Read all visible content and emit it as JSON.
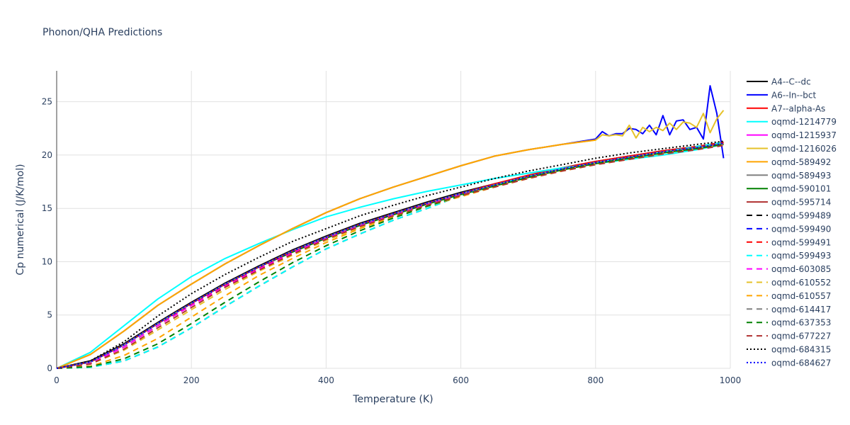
{
  "chart_data": {
    "type": "line",
    "title": "Phonon/QHA Predictions",
    "xlabel": "Temperature (K)",
    "ylabel": "Cp numerical (J/K/mol)",
    "xlim": [
      0,
      1000
    ],
    "ylim": [
      0,
      27.9
    ],
    "xticks": [
      0,
      200,
      400,
      600,
      800,
      1000
    ],
    "yticks": [
      0,
      5,
      10,
      15,
      20,
      25
    ],
    "grid": true,
    "legend_position": "right",
    "x": [
      0,
      50,
      100,
      150,
      200,
      250,
      300,
      350,
      400,
      450,
      500,
      550,
      600,
      650,
      700,
      750,
      800,
      850,
      900,
      950,
      990
    ],
    "series": [
      {
        "name": "A4--C--dc",
        "color": "#000000",
        "dash": "solid",
        "y": [
          0,
          0.7,
          2.3,
          4.3,
          6.2,
          8.0,
          9.6,
          11.1,
          12.4,
          13.6,
          14.6,
          15.6,
          16.5,
          17.3,
          18.1,
          18.8,
          19.4,
          19.9,
          20.4,
          20.8,
          21.2
        ]
      },
      {
        "name": "A6--In--bct",
        "color": "#0000ff",
        "dash": "solid",
        "x": [
          0,
          50,
          100,
          150,
          200,
          250,
          300,
          350,
          400,
          450,
          500,
          550,
          600,
          650,
          700,
          750,
          800,
          810,
          820,
          830,
          840,
          850,
          860,
          870,
          880,
          890,
          900,
          910,
          920,
          930,
          940,
          950,
          960,
          970,
          980,
          990
        ],
        "y": [
          0,
          1.3,
          3.5,
          5.9,
          7.9,
          9.8,
          11.5,
          13.1,
          14.6,
          15.9,
          17.0,
          18.0,
          19.0,
          19.9,
          20.5,
          21.0,
          21.5,
          22.2,
          21.8,
          22.0,
          22.0,
          22.5,
          22.4,
          22.0,
          22.8,
          21.9,
          23.7,
          21.9,
          23.2,
          23.3,
          22.4,
          22.6,
          21.5,
          26.5,
          23.9,
          19.7
        ]
      },
      {
        "name": "A7--alpha-As",
        "color": "#ff0000",
        "dash": "solid",
        "y": [
          0,
          0.6,
          2.2,
          4.2,
          6.1,
          7.9,
          9.5,
          11.0,
          12.3,
          13.5,
          14.5,
          15.5,
          16.4,
          17.3,
          18.1,
          18.8,
          19.4,
          19.9,
          20.4,
          20.8,
          21.2
        ]
      },
      {
        "name": "oqmd-1214779",
        "color": "#00ffff",
        "dash": "solid",
        "y": [
          0,
          1.5,
          4.0,
          6.5,
          8.6,
          10.3,
          11.7,
          13.0,
          14.2,
          15.1,
          15.9,
          16.6,
          17.2,
          17.8,
          18.3,
          18.8,
          19.2,
          19.6,
          20.0,
          20.5,
          21.0
        ]
      },
      {
        "name": "oqmd-1215937",
        "color": "#ff00ff",
        "dash": "solid",
        "y": [
          0,
          0.6,
          2.2,
          4.2,
          6.1,
          7.9,
          9.5,
          11.0,
          12.3,
          13.5,
          14.5,
          15.5,
          16.4,
          17.2,
          18.0,
          18.7,
          19.3,
          19.8,
          20.3,
          20.7,
          21.1
        ]
      },
      {
        "name": "oqmd-1216026",
        "color": "#e6c229",
        "dash": "solid",
        "x": [
          0,
          50,
          100,
          150,
          200,
          250,
          300,
          350,
          400,
          450,
          500,
          550,
          600,
          650,
          700,
          750,
          800,
          810,
          820,
          830,
          840,
          850,
          860,
          870,
          880,
          890,
          900,
          910,
          920,
          930,
          940,
          950,
          960,
          970,
          980,
          990
        ],
        "y": [
          0,
          1.3,
          3.5,
          5.9,
          7.9,
          9.8,
          11.5,
          13.1,
          14.6,
          15.9,
          17.0,
          18.0,
          19.0,
          19.9,
          20.5,
          21.0,
          21.4,
          21.9,
          21.8,
          21.9,
          21.8,
          22.8,
          21.6,
          22.6,
          22.2,
          22.6,
          22.3,
          23.0,
          22.4,
          23.1,
          23.0,
          22.6,
          23.9,
          22.1,
          23.4,
          24.2
        ]
      },
      {
        "name": "oqmd-589492",
        "color": "#ffa500",
        "dash": "solid",
        "x": [
          0,
          50,
          100,
          150,
          200,
          250,
          300,
          350,
          400,
          450,
          500,
          550,
          600,
          650,
          700,
          750,
          800
        ],
        "y": [
          0,
          1.3,
          3.5,
          5.9,
          7.9,
          9.8,
          11.5,
          13.1,
          14.6,
          15.9,
          17.0,
          18.0,
          19.0,
          19.9,
          20.5,
          21.0,
          21.4
        ]
      },
      {
        "name": "oqmd-589493",
        "color": "#808080",
        "dash": "solid",
        "y": [
          0,
          0.6,
          2.2,
          4.2,
          6.1,
          7.9,
          9.5,
          11.0,
          12.3,
          13.5,
          14.5,
          15.5,
          16.4,
          17.2,
          18.0,
          18.7,
          19.3,
          19.8,
          20.3,
          20.7,
          21.1
        ]
      },
      {
        "name": "oqmd-590101",
        "color": "#008000",
        "dash": "solid",
        "y": [
          0,
          0.6,
          2.2,
          4.2,
          6.1,
          7.9,
          9.5,
          10.9,
          12.2,
          13.4,
          14.4,
          15.4,
          16.3,
          17.1,
          17.9,
          18.6,
          19.2,
          19.7,
          20.2,
          20.6,
          21.0
        ]
      },
      {
        "name": "oqmd-595714",
        "color": "#b03030",
        "dash": "solid",
        "y": [
          0,
          0.6,
          2.2,
          4.2,
          6.1,
          7.9,
          9.5,
          11.0,
          12.3,
          13.5,
          14.5,
          15.5,
          16.4,
          17.2,
          18.0,
          18.7,
          19.3,
          19.8,
          20.3,
          20.7,
          21.1
        ]
      },
      {
        "name": "oqmd-599489",
        "color": "#000000",
        "dash": "dash",
        "y": [
          0,
          0.1,
          0.7,
          2.0,
          3.8,
          5.8,
          7.7,
          9.5,
          11.2,
          12.6,
          13.9,
          15.0,
          16.2,
          17.2,
          18.0,
          18.7,
          19.3,
          19.8,
          20.3,
          20.8,
          21.2
        ]
      },
      {
        "name": "oqmd-599490",
        "color": "#0000ff",
        "dash": "dash",
        "y": [
          0,
          0.6,
          2.2,
          4.2,
          6.1,
          7.9,
          9.5,
          11.0,
          12.3,
          13.5,
          14.5,
          15.5,
          16.4,
          17.2,
          18.0,
          18.7,
          19.3,
          19.8,
          20.3,
          20.7,
          21.1
        ]
      },
      {
        "name": "oqmd-599491",
        "color": "#ff0000",
        "dash": "dash",
        "y": [
          0,
          0.5,
          2.0,
          4.0,
          6.0,
          7.8,
          9.4,
          10.9,
          12.3,
          13.5,
          14.5,
          15.5,
          16.4,
          17.2,
          18.0,
          18.7,
          19.3,
          19.8,
          20.3,
          20.7,
          21.1
        ]
      },
      {
        "name": "oqmd-599493",
        "color": "#00ffff",
        "dash": "dash",
        "y": [
          0,
          0.1,
          0.7,
          2.0,
          3.8,
          5.8,
          7.7,
          9.5,
          11.2,
          12.6,
          13.9,
          15.0,
          16.2,
          17.2,
          18.0,
          18.7,
          19.3,
          19.8,
          20.3,
          20.8,
          21.2
        ]
      },
      {
        "name": "oqmd-603085",
        "color": "#ff00ff",
        "dash": "dash",
        "y": [
          0,
          0.5,
          2.0,
          4.0,
          5.9,
          7.7,
          9.3,
          10.8,
          12.2,
          13.4,
          14.4,
          15.4,
          16.3,
          17.1,
          17.9,
          18.6,
          19.2,
          19.7,
          20.2,
          20.6,
          21.0
        ]
      },
      {
        "name": "oqmd-610552",
        "color": "#e6c229",
        "dash": "dash",
        "y": [
          0,
          0.4,
          1.7,
          3.6,
          5.5,
          7.4,
          9.1,
          10.6,
          12.0,
          13.2,
          14.3,
          15.3,
          16.2,
          17.1,
          17.9,
          18.6,
          19.2,
          19.7,
          20.2,
          20.6,
          21.0
        ]
      },
      {
        "name": "oqmd-610557",
        "color": "#ffa500",
        "dash": "dash",
        "y": [
          0,
          0.2,
          1.2,
          2.8,
          4.8,
          6.8,
          8.7,
          10.3,
          11.8,
          13.1,
          14.2,
          15.2,
          16.1,
          17.0,
          17.8,
          18.5,
          19.1,
          19.6,
          20.1,
          20.6,
          21.0
        ]
      },
      {
        "name": "oqmd-614417",
        "color": "#808080",
        "dash": "dash",
        "y": [
          0,
          0.6,
          2.2,
          4.2,
          6.1,
          7.9,
          9.5,
          11.0,
          12.3,
          13.5,
          14.5,
          15.5,
          16.4,
          17.2,
          18.0,
          18.7,
          19.3,
          19.8,
          20.3,
          20.7,
          21.1
        ]
      },
      {
        "name": "oqmd-637353",
        "color": "#008000",
        "dash": "dash",
        "y": [
          0,
          0.15,
          0.9,
          2.3,
          4.2,
          6.2,
          8.1,
          9.9,
          11.5,
          12.9,
          14.1,
          15.2,
          16.2,
          17.1,
          17.9,
          18.6,
          19.2,
          19.7,
          20.2,
          20.6,
          21.0
        ]
      },
      {
        "name": "oqmd-677227",
        "color": "#b03030",
        "dash": "dash",
        "y": [
          0,
          0.4,
          1.8,
          3.8,
          5.7,
          7.6,
          9.2,
          10.7,
          12.1,
          13.3,
          14.3,
          15.3,
          16.2,
          17.0,
          17.8,
          18.5,
          19.1,
          19.6,
          20.1,
          20.5,
          20.9
        ]
      },
      {
        "name": "oqmd-684315",
        "color": "#000000",
        "dash": "dot",
        "y": [
          0,
          0.7,
          2.5,
          4.9,
          7.0,
          8.8,
          10.4,
          11.9,
          13.1,
          14.3,
          15.3,
          16.2,
          17.0,
          17.8,
          18.5,
          19.1,
          19.7,
          20.2,
          20.6,
          21.0,
          21.3
        ]
      },
      {
        "name": "oqmd-684627",
        "color": "#0000ff",
        "dash": "dot",
        "y": [
          0,
          0.6,
          2.2,
          4.2,
          6.1,
          7.9,
          9.5,
          11.0,
          12.3,
          13.5,
          14.5,
          15.5,
          16.4,
          17.2,
          18.0,
          18.7,
          19.3,
          19.8,
          20.3,
          20.7,
          21.1
        ]
      }
    ]
  }
}
